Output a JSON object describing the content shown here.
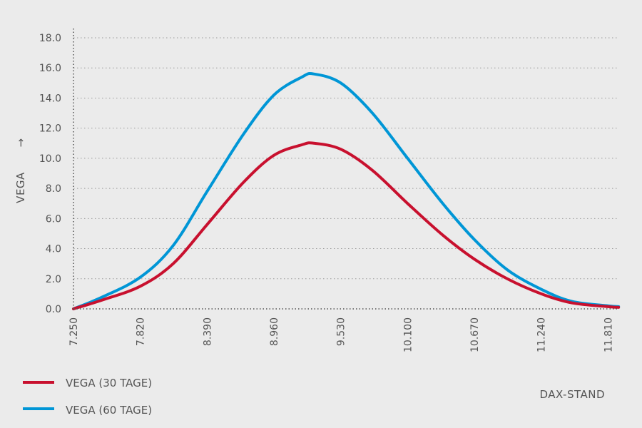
{
  "chart_data": {
    "type": "line",
    "xlabel": "DAX-STAND",
    "ylabel": "VEGA",
    "ylabel_arrow": "→",
    "xlim": [
      7250,
      11905
    ],
    "ylim": [
      0,
      18
    ],
    "x_ticks": [
      7250,
      7820,
      8390,
      8960,
      9530,
      10100,
      10670,
      11240,
      11810
    ],
    "x_tick_labels": [
      "7.250",
      "7.820",
      "8.390",
      "8.960",
      "9.530",
      "10.100",
      "10.670",
      "11.240",
      "11.810"
    ],
    "y_ticks": [
      0,
      2,
      4,
      6,
      8,
      10,
      12,
      14,
      16,
      18
    ],
    "y_tick_labels": [
      "0.0",
      "2.0",
      "4.0",
      "6.0",
      "8.0",
      "10.0",
      "12.0",
      "14.0",
      "16.0",
      "18.0"
    ],
    "grid": true,
    "legend_position": "bottom-left",
    "series": [
      {
        "name": "VEGA (30 TAGE)",
        "color": "#c8102e",
        "points": [
          [
            7250,
            0
          ],
          [
            7500,
            0.6
          ],
          [
            7820,
            1.5
          ],
          [
            8100,
            3.0
          ],
          [
            8390,
            5.6
          ],
          [
            8700,
            8.4
          ],
          [
            8960,
            10.2
          ],
          [
            9200,
            10.9
          ],
          [
            9300,
            11.0
          ],
          [
            9530,
            10.6
          ],
          [
            9800,
            9.2
          ],
          [
            10100,
            7.0
          ],
          [
            10400,
            4.9
          ],
          [
            10670,
            3.3
          ],
          [
            10950,
            2.0
          ],
          [
            11240,
            1.0
          ],
          [
            11500,
            0.4
          ],
          [
            11810,
            0.15
          ],
          [
            11900,
            0.1
          ]
        ]
      },
      {
        "name": "VEGA (60 TAGE)",
        "color": "#0096d6",
        "points": [
          [
            7250,
            0
          ],
          [
            7500,
            0.8
          ],
          [
            7820,
            2.1
          ],
          [
            8100,
            4.2
          ],
          [
            8390,
            7.8
          ],
          [
            8700,
            11.6
          ],
          [
            8960,
            14.2
          ],
          [
            9200,
            15.4
          ],
          [
            9300,
            15.6
          ],
          [
            9530,
            15.0
          ],
          [
            9800,
            13.0
          ],
          [
            10100,
            10.0
          ],
          [
            10400,
            7.0
          ],
          [
            10670,
            4.6
          ],
          [
            10950,
            2.6
          ],
          [
            11240,
            1.3
          ],
          [
            11500,
            0.5
          ],
          [
            11810,
            0.2
          ],
          [
            11900,
            0.15
          ]
        ]
      }
    ]
  }
}
